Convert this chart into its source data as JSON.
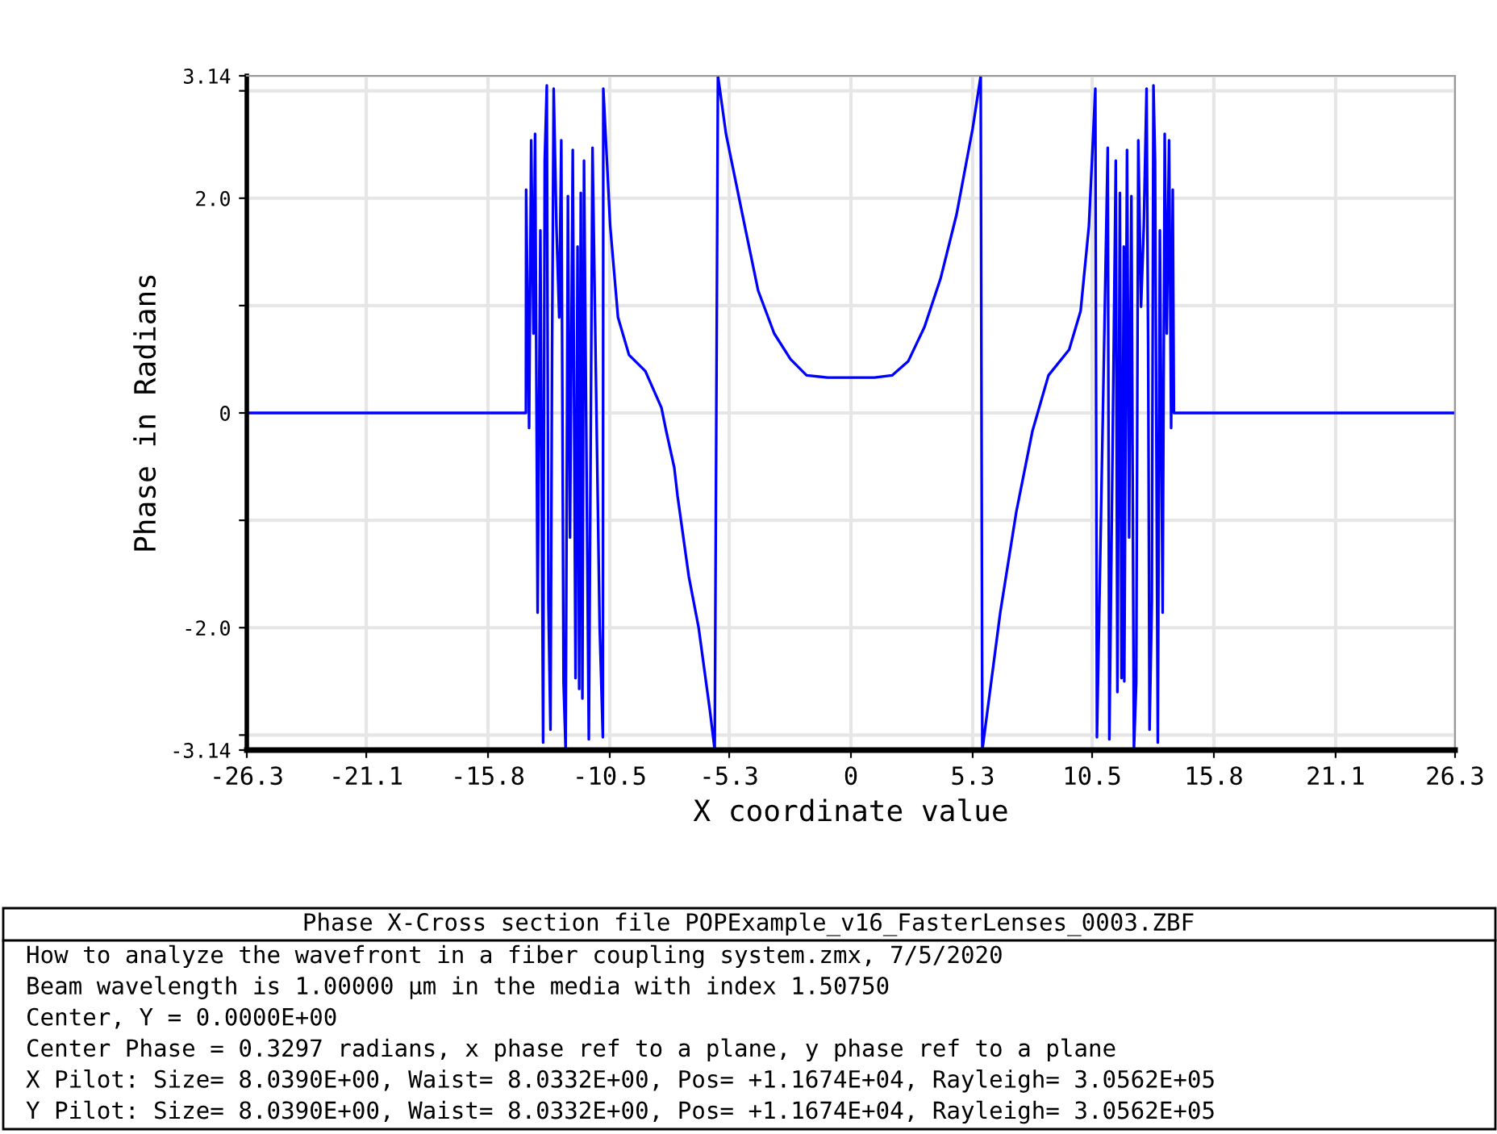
{
  "chart_data": {
    "type": "line",
    "xlabel": "X coordinate value",
    "ylabel": "Phase in Radians",
    "x": [
      -26.3,
      -14.15,
      -14.14,
      -14.01,
      -13.92,
      -13.82,
      -13.75,
      -13.64,
      -13.52,
      -13.4,
      -13.33,
      -13.24,
      -13.17,
      -13.08,
      -13.01,
      -12.94,
      -12.82,
      -12.7,
      -12.61,
      -12.51,
      -12.42,
      -12.32,
      -12.23,
      -12.11,
      -11.99,
      -11.9,
      -11.83,
      -11.76,
      -11.69,
      -11.62,
      -11.41,
      -11.25,
      -10.94,
      -10.8,
      -10.78,
      -10.48,
      -10.14,
      -9.66,
      -8.95,
      -8.25,
      -8.04,
      -7.69,
      -7.55,
      -7.06,
      -6.63,
      -6.14,
      -5.93,
      -5.79,
      -5.44,
      -4.62,
      -4.04,
      -3.34,
      -2.63,
      -1.93,
      -1.02,
      1.02,
      1.79,
      2.49,
      3.2,
      3.9,
      4.6,
      5.3,
      5.65,
      5.72,
      6.5,
      7.2,
      7.9,
      8.6,
      9.5,
      10.0,
      10.36,
      10.64,
      10.71,
      11.18,
      11.25,
      11.53,
      11.6,
      11.71,
      11.78,
      11.88,
      11.9,
      12.02,
      12.11,
      12.21,
      12.32,
      12.42,
      12.51,
      12.63,
      12.75,
      12.87,
      12.94,
      13.0,
      13.1,
      13.17,
      13.24,
      13.36,
      13.45,
      13.57,
      13.66,
      13.75,
      13.85,
      13.94,
      14.01,
      14.06,
      26.3
    ],
    "series": [
      {
        "color": "#0000ff",
        "values": [
          0,
          0,
          2.08,
          -0.14,
          2.54,
          0.74,
          2.6,
          -1.86,
          1.7,
          -3.07,
          2.35,
          3.05,
          -1.76,
          -2.95,
          0.59,
          3.02,
          1.74,
          0.89,
          2.54,
          -2.51,
          -3.14,
          2.02,
          -1.16,
          2.45,
          -2.47,
          1.55,
          -2.57,
          2.05,
          -2.66,
          2.35,
          -3.04,
          2.47,
          -1.98,
          -3.02,
          3.02,
          1.74,
          0.89,
          0.54,
          0.39,
          0.05,
          -0.17,
          -0.51,
          -0.77,
          -1.52,
          -2.0,
          -2.77,
          -3.14,
          3.14,
          2.6,
          1.74,
          1.14,
          0.74,
          0.5,
          0.35,
          0.33,
          0.33,
          0.35,
          0.48,
          0.8,
          1.25,
          1.85,
          2.65,
          3.14,
          -3.14,
          -1.86,
          -0.92,
          -0.17,
          0.35,
          0.59,
          0.95,
          1.74,
          3.02,
          -3.02,
          2.47,
          -3.04,
          2.35,
          -2.6,
          2.05,
          -2.47,
          1.55,
          -2.5,
          2.45,
          -1.16,
          2.02,
          -3.14,
          -2.51,
          2.54,
          0.99,
          1.74,
          3.02,
          0.6,
          -2.95,
          -1.76,
          3.05,
          2.35,
          -3.07,
          1.7,
          -1.86,
          2.6,
          0.74,
          2.54,
          -0.14,
          2.08,
          0,
          0
        ]
      }
    ],
    "xlim": [
      -26.3,
      26.3
    ],
    "ylim": [
      -3.14,
      3.14
    ],
    "xticks": [
      -26.3,
      -21.1,
      -15.8,
      -10.5,
      -5.3,
      0,
      5.3,
      10.5,
      15.8,
      21.1,
      26.3
    ],
    "yticks": [
      -3.14,
      {
        "value": -3,
        "label": null
      },
      {
        "value": -2,
        "label": "-2.0"
      },
      {
        "value": -1,
        "label": null
      },
      0,
      {
        "value": 1,
        "label": null
      },
      {
        "value": 2,
        "label": "2.0"
      },
      {
        "value": 3,
        "label": null
      },
      3.14
    ],
    "grid": true,
    "legend": false,
    "marker": "none",
    "line_style": "solid",
    "annotations": [
      "Phase X-Cross section file POPExample_v16_FasterLenses_0003.ZBF",
      "How to analyze the wavefront in a fiber coupling system.zmx, 7/5/2020",
      "Beam wavelength is 1.00000 µm in the media with index 1.50750",
      "Center, Y = 0.0000E+00",
      "Center Phase = 0.3297 radians, x phase ref to a plane, y phase ref to a plane",
      "X Pilot: Size= 8.0390E+00, Waist= 8.0332E+00, Pos= +1.1674E+04, Rayleigh= 3.0562E+05",
      "Y Pilot: Size= 8.0390E+00, Waist= 8.0332E+00, Pos= +1.1674E+04, Rayleigh= 3.0562E+05"
    ]
  }
}
